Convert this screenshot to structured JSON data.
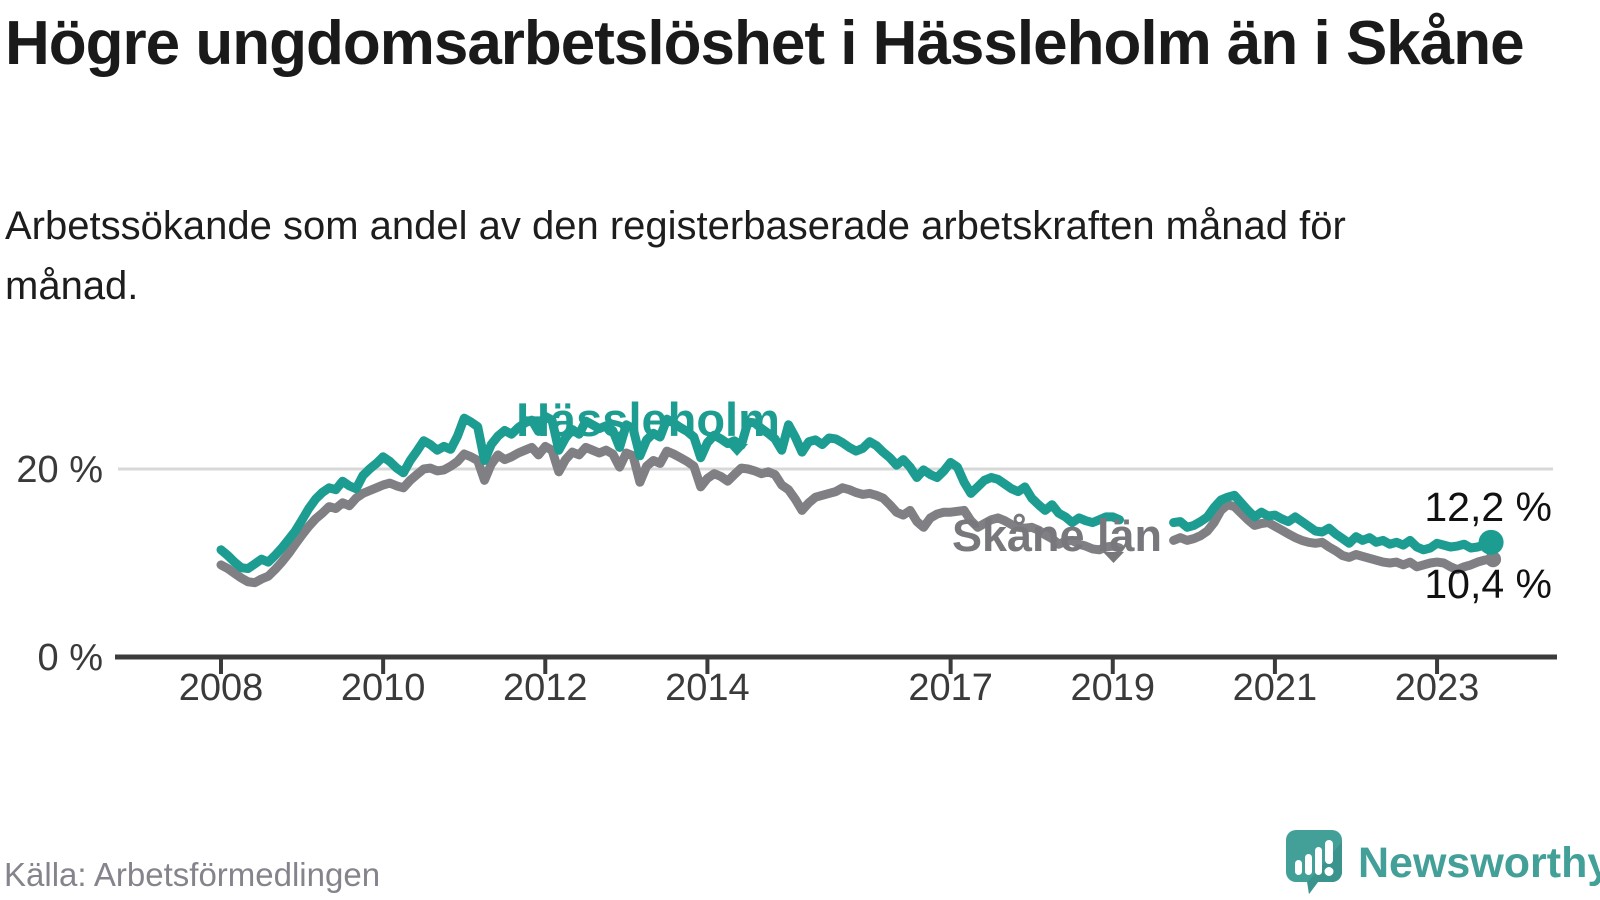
{
  "header": {
    "title": "Högre ungdomsarbetslöshet i Hässleholm än i Skåne",
    "subtitle": "Arbetssökande som andel av den registerbaserade arbetskraften månad för månad."
  },
  "footer": {
    "source": "Källa: Arbetsförmedlingen",
    "logo_text": "Newsworthy"
  },
  "colors": {
    "hassleholm": "#1d9d92",
    "skane": "#808084",
    "skane_label": "#77777c",
    "grid": "#d8d8d8",
    "axis": "#3b3b3b",
    "tick_text": "#3a3a3a",
    "end_label_text": "#111111",
    "logo_teal": "#43a098"
  },
  "chart_data": {
    "type": "line",
    "title": "Högre ungdomsarbetslöshet i Hässleholm än i Skåne",
    "subtitle": "Arbetssökande som andel av den registerbaserade arbetskraften månad för månad.",
    "unit": "%",
    "frequency": "monthly",
    "x_start": "2008-01",
    "x_end": "2023-09",
    "data_gap": "2019-03 till 2019-09",
    "x_tick_labels": [
      "2008",
      "2010",
      "2012",
      "2014",
      "2017",
      "2019",
      "2021",
      "2023"
    ],
    "y_ticks": [
      {
        "value": 0,
        "label": "0 %"
      },
      {
        "value": 20,
        "label": "20 %"
      }
    ],
    "ylim": [
      0,
      28.5
    ],
    "grid": "horizontal line at 20 % only",
    "legend_position": "inline labels on lines",
    "series": [
      {
        "name": "Skåne län",
        "color": "#808084",
        "end_value_label": "10,4 %",
        "values": [
          9.8,
          9.4,
          8.9,
          8.4,
          8.0,
          7.9,
          8.3,
          8.6,
          9.3,
          10.1,
          11.0,
          12.0,
          13.0,
          13.9,
          14.7,
          15.3,
          16.0,
          15.8,
          16.4,
          16.1,
          16.9,
          17.4,
          17.7,
          18.0,
          18.3,
          18.5,
          18.2,
          18.0,
          18.8,
          19.4,
          20.0,
          20.1,
          19.8,
          19.9,
          20.3,
          20.8,
          21.6,
          21.3,
          20.9,
          18.8,
          20.5,
          21.5,
          21.0,
          21.3,
          21.7,
          22.0,
          22.3,
          21.5,
          22.4,
          22.0,
          19.7,
          21.0,
          21.8,
          21.5,
          22.3,
          22.0,
          21.7,
          22.0,
          21.6,
          20.2,
          21.7,
          21.4,
          18.6,
          20.3,
          20.9,
          20.6,
          21.9,
          21.6,
          21.2,
          20.8,
          20.3,
          18.1,
          19.0,
          19.5,
          19.2,
          18.7,
          19.4,
          20.1,
          20.0,
          19.8,
          19.5,
          19.7,
          19.4,
          18.3,
          17.8,
          16.8,
          15.6,
          16.4,
          17.0,
          17.2,
          17.4,
          17.6,
          18.0,
          17.8,
          17.5,
          17.3,
          17.4,
          17.2,
          16.9,
          16.2,
          15.4,
          15.1,
          15.6,
          14.4,
          13.8,
          14.8,
          15.2,
          15.4,
          15.4,
          15.5,
          15.6,
          14.5,
          13.8,
          14.2,
          14.6,
          14.8,
          14.5,
          14.1,
          13.8,
          13.7,
          13.8,
          13.5,
          13.0,
          12.6,
          12.0,
          12.3,
          12.4,
          12.0,
          11.8,
          11.5,
          11.4,
          11.7,
          11.8,
          11.6,
          null,
          null,
          null,
          null,
          null,
          null,
          null,
          12.4,
          12.7,
          12.4,
          12.6,
          12.9,
          13.4,
          14.3,
          15.6,
          16.2,
          16.0,
          15.3,
          14.6,
          14.0,
          14.2,
          14.3,
          13.9,
          13.5,
          13.1,
          12.7,
          12.4,
          12.2,
          12.1,
          12.2,
          11.7,
          11.3,
          10.8,
          10.6,
          10.9,
          10.7,
          10.5,
          10.3,
          10.1,
          10.0,
          10.1,
          9.8,
          10.1,
          9.6,
          9.8,
          10.0,
          10.1,
          10.0,
          9.6,
          9.3,
          9.6,
          9.8,
          10.1,
          10.3,
          10.4
        ]
      },
      {
        "name": "Hässleholm",
        "color": "#1d9d92",
        "end_value_label": "12,2 %",
        "values": [
          11.4,
          10.8,
          10.1,
          9.5,
          9.4,
          9.9,
          10.4,
          10.1,
          10.8,
          11.6,
          12.5,
          13.4,
          14.6,
          15.8,
          16.8,
          17.5,
          18.0,
          17.8,
          18.7,
          18.2,
          17.9,
          19.3,
          20.0,
          20.6,
          21.3,
          20.8,
          20.1,
          19.6,
          20.9,
          21.9,
          23.0,
          22.6,
          22.0,
          22.4,
          22.1,
          23.5,
          25.4,
          25.0,
          24.5,
          20.9,
          22.6,
          23.5,
          24.1,
          23.7,
          24.4,
          24.9,
          25.2,
          24.0,
          25.6,
          25.2,
          22.0,
          23.3,
          24.2,
          23.7,
          25.1,
          24.7,
          24.3,
          24.6,
          24.1,
          22.3,
          24.7,
          24.3,
          21.4,
          23.1,
          23.8,
          23.4,
          25.3,
          24.9,
          24.4,
          24.0,
          23.4,
          21.2,
          22.8,
          23.6,
          23.2,
          22.7,
          23.0,
          22.5,
          25.0,
          24.9,
          24.3,
          23.8,
          23.2,
          22.0,
          24.7,
          23.4,
          21.8,
          22.9,
          23.1,
          22.6,
          23.3,
          23.2,
          22.8,
          22.3,
          21.9,
          22.2,
          22.9,
          22.5,
          21.8,
          21.2,
          20.4,
          21.0,
          20.2,
          19.1,
          19.9,
          19.4,
          19.1,
          19.8,
          20.7,
          20.2,
          18.6,
          17.4,
          18.1,
          18.8,
          19.1,
          18.9,
          18.4,
          17.9,
          17.6,
          18.1,
          16.9,
          16.2,
          15.6,
          16.2,
          15.3,
          14.9,
          14.3,
          14.8,
          14.5,
          14.3,
          14.6,
          14.9,
          14.9,
          14.6,
          null,
          null,
          null,
          null,
          null,
          null,
          null,
          14.3,
          14.4,
          13.8,
          14.0,
          14.4,
          14.9,
          15.9,
          16.7,
          17.0,
          17.2,
          16.4,
          15.6,
          14.9,
          15.4,
          15.0,
          15.1,
          14.7,
          14.4,
          14.9,
          14.4,
          13.9,
          13.4,
          13.3,
          13.7,
          13.1,
          12.6,
          12.1,
          12.8,
          12.4,
          12.7,
          12.2,
          12.4,
          12.0,
          12.2,
          11.9,
          12.4,
          11.7,
          11.4,
          11.6,
          12.1,
          11.9,
          11.7,
          11.8,
          12.0,
          11.6,
          11.7,
          11.9,
          12.2
        ]
      }
    ]
  }
}
